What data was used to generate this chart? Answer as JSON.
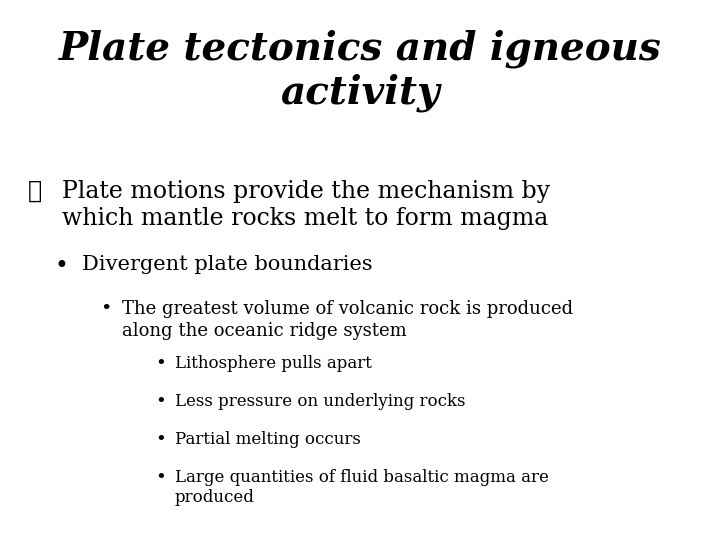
{
  "background_color": "#ffffff",
  "title_line1": "Plate tectonics and igneous",
  "title_line2": "activity",
  "title_fontsize": 28,
  "title_font": "DejaVu Serif",
  "body_font": "DejaVu Serif",
  "bullet1_text_line1": "Plate motions provide the mechanism by",
  "bullet1_text_line2": "which mantle rocks melt to form magma",
  "bullet1_fontsize": 17,
  "bullet2_text": "Divergent plate boundaries",
  "bullet2_fontsize": 15,
  "bullet3_text_line1": "The greatest volume of volcanic rock is produced",
  "bullet3_text_line2": "along the oceanic ridge system",
  "bullet3_fontsize": 13,
  "sub_bullets": [
    "Lithosphere pulls apart",
    "Less pressure on underlying rocks",
    "Partial melting occurs",
    "Large quantities of fluid basaltic magma are\nproduced"
  ],
  "sub_bullet_fontsize": 12,
  "text_color": "#000000",
  "diamond_bullet": "❖"
}
